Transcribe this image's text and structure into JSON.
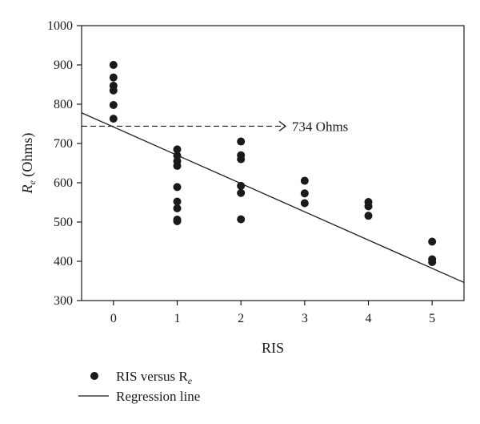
{
  "chart_data": {
    "type": "scatter",
    "xlabel": "RIS",
    "ylabel": "R",
    "ylabel_sub": "e",
    "ylabel_unit": " (Ohms)",
    "xlim": [
      -0.5,
      5.5
    ],
    "ylim": [
      300,
      1000
    ],
    "x_ticks": [
      0,
      1,
      2,
      3,
      4,
      5
    ],
    "y_ticks": [
      300,
      400,
      500,
      600,
      700,
      800,
      900,
      1000
    ],
    "grid": false,
    "series": [
      {
        "name": "RIS versus R",
        "name_sub": "e",
        "kind": "scatter",
        "color": "#1a1a1a",
        "points": [
          [
            0,
            900
          ],
          [
            0,
            868
          ],
          [
            0,
            847
          ],
          [
            0,
            835
          ],
          [
            0,
            798
          ],
          [
            0,
            763
          ],
          [
            1,
            685
          ],
          [
            1,
            669
          ],
          [
            1,
            655
          ],
          [
            1,
            643
          ],
          [
            1,
            589
          ],
          [
            1,
            552
          ],
          [
            1,
            535
          ],
          [
            1,
            506
          ],
          [
            1,
            502
          ],
          [
            2,
            705
          ],
          [
            2,
            670
          ],
          [
            2,
            660
          ],
          [
            2,
            592
          ],
          [
            2,
            574
          ],
          [
            2,
            507
          ],
          [
            3,
            605
          ],
          [
            3,
            573
          ],
          [
            3,
            548
          ],
          [
            4,
            551
          ],
          [
            4,
            540
          ],
          [
            4,
            516
          ],
          [
            5,
            450
          ],
          [
            5,
            405
          ],
          [
            5,
            398
          ]
        ]
      },
      {
        "name": "Regression line",
        "kind": "line",
        "color": "#1a1a1a",
        "intercept": 742,
        "slope": -72
      }
    ],
    "annotations": [
      {
        "text": "734 Ohms",
        "y": 744,
        "x_start": -0.5,
        "x_end": 2.7,
        "style": "dashed-arrow"
      }
    ],
    "legend": {
      "position": "bottom-left"
    }
  }
}
